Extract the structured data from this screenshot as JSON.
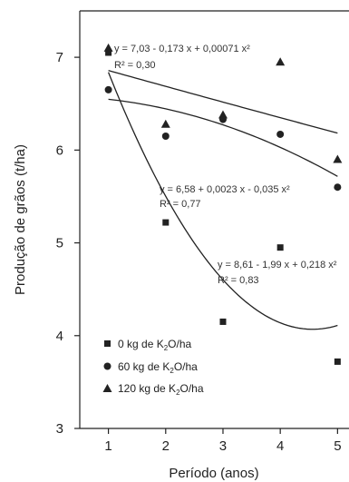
{
  "chart_data": {
    "type": "scatter",
    "xlabel": "Período (anos)",
    "ylabel": "Produção de grãos (t/ha)",
    "xlim": [
      0.5,
      5.2
    ],
    "ylim": [
      3,
      7.5
    ],
    "x_ticks": [
      "1",
      "2",
      "3",
      "4",
      "5"
    ],
    "y_ticks": [
      "3",
      "4",
      "5",
      "6",
      "7"
    ],
    "x": [
      1,
      2,
      3,
      4,
      5
    ],
    "series": [
      {
        "name": "0 kg de K2O/ha",
        "name_main": "0 kg de K",
        "name_sub": "2",
        "name_rest": "O/ha",
        "marker": "square",
        "values": [
          7.05,
          5.22,
          4.15,
          4.95,
          3.72
        ],
        "fit": {
          "equation": "y = 8,61 - 1,99 x + 0,218 x²",
          "r2": "R² = 0,83",
          "coefficients": [
            8.61,
            -1.99,
            0.218
          ]
        }
      },
      {
        "name": "60 kg de K2O/ha",
        "name_main": "60 kg de K",
        "name_sub": "2",
        "name_rest": "O/ha",
        "marker": "circle",
        "values": [
          6.65,
          6.15,
          6.33,
          6.17,
          5.6
        ],
        "fit": {
          "equation": "y = 6,58 + 0,0023 x - 0,035 x²",
          "r2": "R² = 0,77",
          "coefficients": [
            6.58,
            0.0023,
            -0.035
          ]
        }
      },
      {
        "name": "120 kg de K2O/ha",
        "name_main": "120 kg de K",
        "name_sub": "2",
        "name_rest": "O/ha",
        "marker": "triangle",
        "values": [
          7.1,
          6.28,
          6.38,
          6.95,
          5.9
        ],
        "fit": {
          "equation": "y = 7,03 - 0,173 x + 0,00071 x²",
          "r2": "R² = 0,30",
          "coefficients": [
            7.03,
            -0.173,
            0.00071
          ]
        }
      }
    ],
    "legend_position": "bottom-left",
    "grid": false
  }
}
